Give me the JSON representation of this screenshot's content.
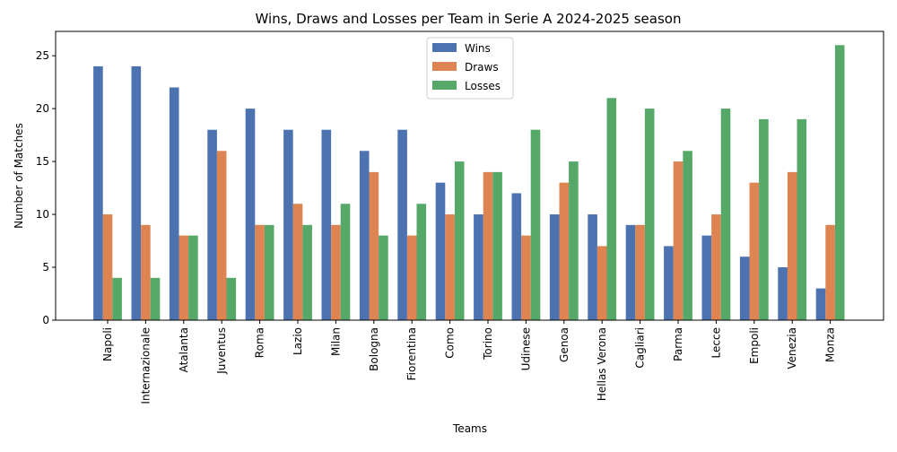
{
  "chart_data": {
    "type": "bar",
    "title": "Wins, Draws and Losses per Team in Serie A 2024-2025 season",
    "xlabel": "Teams",
    "ylabel": "Number of Matches",
    "ylim": [
      0,
      27.3
    ],
    "yticks": [
      0,
      5,
      10,
      15,
      20,
      25
    ],
    "grid": false,
    "legend_position": "top-center",
    "categories": [
      "Napoli",
      "Internazionale",
      "Atalanta",
      "Juventus",
      "Roma",
      "Lazio",
      "Milan",
      "Bologna",
      "Fiorentina",
      "Como",
      "Torino",
      "Udinese",
      "Genoa",
      "Hellas Verona",
      "Cagliari",
      "Parma",
      "Lecce",
      "Empoli",
      "Venezia",
      "Monza"
    ],
    "series": [
      {
        "name": "Wins",
        "color": "#4c72b0",
        "values": [
          24,
          24,
          22,
          18,
          20,
          18,
          18,
          16,
          18,
          13,
          10,
          12,
          10,
          10,
          9,
          7,
          8,
          6,
          5,
          3
        ]
      },
      {
        "name": "Draws",
        "color": "#dd8452",
        "values": [
          10,
          9,
          8,
          16,
          9,
          11,
          9,
          14,
          8,
          10,
          14,
          8,
          13,
          7,
          9,
          15,
          10,
          13,
          14,
          9
        ]
      },
      {
        "name": "Losses",
        "color": "#55a868",
        "values": [
          4,
          4,
          8,
          4,
          9,
          9,
          11,
          8,
          11,
          15,
          14,
          18,
          15,
          21,
          20,
          16,
          20,
          19,
          19,
          26
        ]
      }
    ]
  }
}
